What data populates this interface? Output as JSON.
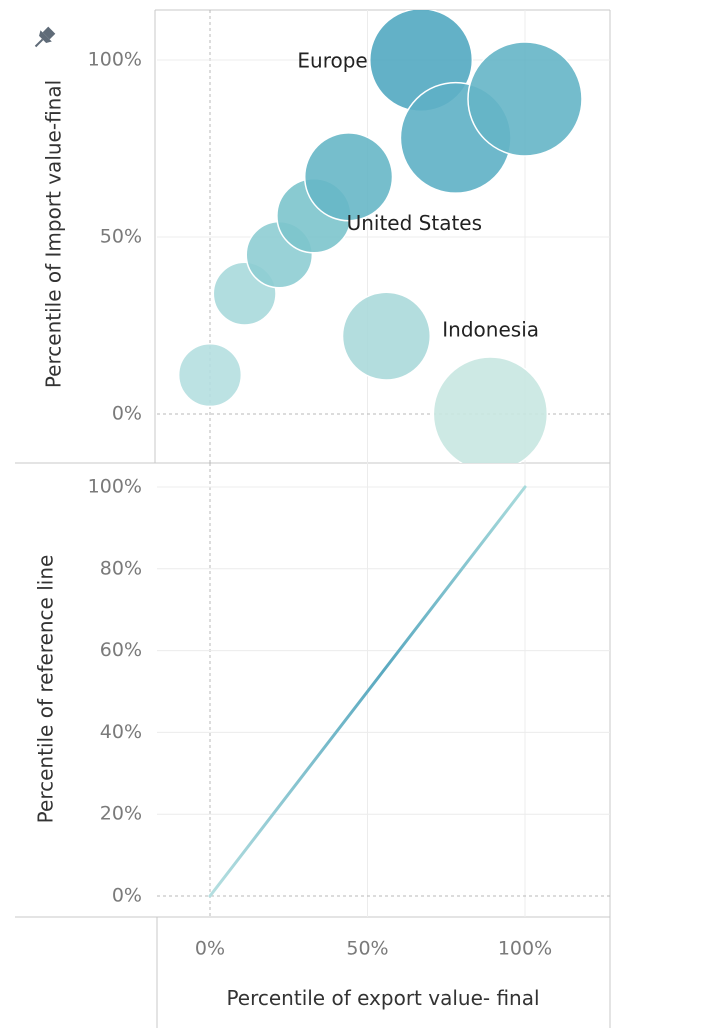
{
  "chart_data": [
    {
      "type": "scatter",
      "pin_icon": "pin-icon",
      "ylabel": "Percentile of Import value-final",
      "xlabel": "Percentile of export value- final",
      "ylim": [
        0,
        1
      ],
      "xlim": [
        0,
        1
      ],
      "yticks": [
        "0%",
        "50%",
        "100%"
      ],
      "xticks": [
        "0%",
        "50%",
        "100%"
      ],
      "grid": true,
      "points": [
        {
          "x": 0.0,
          "y": 0.11,
          "size": 0.55,
          "color": "#b5dfe0",
          "label": ""
        },
        {
          "x": 0.11,
          "y": 0.34,
          "size": 0.55,
          "color": "#a8d9dc",
          "label": ""
        },
        {
          "x": 0.22,
          "y": 0.45,
          "size": 0.58,
          "color": "#8ecdd3",
          "label": ""
        },
        {
          "x": 0.33,
          "y": 0.56,
          "size": 0.65,
          "color": "#7cc4cc",
          "label": ""
        },
        {
          "x": 0.44,
          "y": 0.67,
          "size": 0.77,
          "color": "#67b7c6",
          "label": "United States"
        },
        {
          "x": 0.56,
          "y": 0.22,
          "size": 0.77,
          "color": "#abd9da",
          "label": "Indonesia"
        },
        {
          "x": 0.67,
          "y": 1.0,
          "size": 0.9,
          "color": "#52a8c1",
          "label": "Europe"
        },
        {
          "x": 0.78,
          "y": 0.78,
          "size": 0.97,
          "color": "#5eb0c5",
          "label": ""
        },
        {
          "x": 0.89,
          "y": 0.0,
          "size": 1.0,
          "color": "#c8e7e1",
          "label": ""
        },
        {
          "x": 1.0,
          "y": 0.89,
          "size": 1.0,
          "color": "#65b5c7",
          "label": ""
        }
      ]
    },
    {
      "type": "line",
      "ylabel": "Percentile of reference line",
      "xlabel": "Percentile of export value- final",
      "ylim": [
        0,
        1
      ],
      "xlim": [
        0,
        1
      ],
      "yticks": [
        "0%",
        "20%",
        "40%",
        "60%",
        "80%",
        "100%"
      ],
      "xticks": [
        "0%",
        "50%",
        "100%"
      ],
      "grid": true,
      "series": [
        {
          "x": [
            0,
            1
          ],
          "y": [
            0,
            1
          ],
          "color": "#6ab4c4"
        }
      ]
    }
  ]
}
